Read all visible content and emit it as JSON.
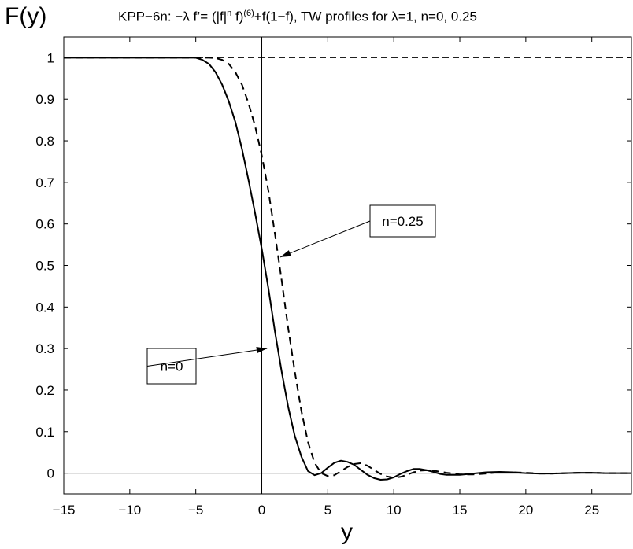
{
  "chart_data": {
    "type": "line",
    "title_parts": {
      "prefix": "KPP−6n: −λ f’= (|f|",
      "sup_n": "n",
      "mid": " f)",
      "sup_6": "(6)",
      "suffix": "+f(1−f), TW profiles for λ=1, n=0, 0.25"
    },
    "ylabel": "F(y)",
    "xlabel": "y",
    "xlim": [
      -15,
      28
    ],
    "ylim": [
      -0.05,
      1.05
    ],
    "xticks": [
      -15,
      -10,
      -5,
      0,
      5,
      10,
      15,
      20,
      25
    ],
    "xtick_labels": [
      "−15",
      "−10",
      "−5",
      "0",
      "5",
      "10",
      "15",
      "20",
      "25"
    ],
    "yticks": [
      0,
      0.1,
      0.2,
      0.3,
      0.4,
      0.5,
      0.6,
      0.7,
      0.8,
      0.9,
      1
    ],
    "ytick_labels": [
      "0",
      "0.1",
      "0.2",
      "0.3",
      "0.4",
      "0.5",
      "0.6",
      "0.7",
      "0.8",
      "0.9",
      "1"
    ],
    "grid": false,
    "reference_lines": [
      {
        "axis": "y",
        "value": 1,
        "style": "dashed"
      },
      {
        "axis": "y",
        "value": 0,
        "style": "solid"
      },
      {
        "axis": "x",
        "value": 0,
        "style": "solid"
      }
    ],
    "series": [
      {
        "name": "n=0",
        "style": "solid",
        "color": "#000000",
        "x": [
          -15,
          -10,
          -6,
          -5,
          -4.5,
          -4,
          -3.5,
          -3,
          -2.5,
          -2,
          -1.5,
          -1,
          -0.5,
          0,
          0.5,
          1,
          1.5,
          2,
          2.5,
          3,
          3.5,
          4,
          4.5,
          5,
          5.5,
          6,
          6.5,
          7,
          7.5,
          8,
          8.5,
          9,
          9.5,
          10,
          10.5,
          11,
          11.5,
          12,
          12.5,
          13,
          13.5,
          14,
          15,
          16,
          17,
          18,
          19,
          20,
          21,
          22,
          23,
          24,
          25,
          26,
          27,
          28
        ],
        "y": [
          1,
          1,
          1,
          1,
          0.995,
          0.985,
          0.965,
          0.935,
          0.895,
          0.845,
          0.78,
          0.705,
          0.625,
          0.54,
          0.445,
          0.34,
          0.245,
          0.16,
          0.09,
          0.04,
          0.005,
          -0.005,
          0.0,
          0.013,
          0.025,
          0.03,
          0.027,
          0.02,
          0.008,
          -0.004,
          -0.012,
          -0.016,
          -0.015,
          -0.01,
          -0.002,
          0.005,
          0.01,
          0.01,
          0.007,
          0.003,
          -0.002,
          -0.004,
          -0.004,
          -0.001,
          0.002,
          0.003,
          0.002,
          0.0,
          -0.001,
          -0.001,
          0.0,
          0.001,
          0.001,
          0.0,
          0.0,
          0.0
        ]
      },
      {
        "name": "n=0.25",
        "style": "dashed",
        "color": "#000000",
        "x": [
          -15,
          -10,
          -6,
          -5,
          -4,
          -3.5,
          -3,
          -2.5,
          -2,
          -1.5,
          -1,
          -0.5,
          0,
          0.5,
          1,
          1.5,
          2,
          2.5,
          3,
          3.5,
          4,
          4.5,
          5,
          5.5,
          6,
          6.5,
          7,
          7.5,
          8,
          8.5,
          9,
          9.5,
          10,
          10.5,
          11,
          11.5,
          12,
          12.5,
          13,
          14,
          15,
          16,
          17,
          18,
          19,
          20,
          21,
          22,
          23,
          24,
          25,
          26,
          27,
          28
        ],
        "y": [
          1,
          1,
          1,
          1,
          1,
          0.999,
          0.995,
          0.985,
          0.965,
          0.935,
          0.89,
          0.835,
          0.765,
          0.68,
          0.575,
          0.465,
          0.35,
          0.245,
          0.15,
          0.075,
          0.025,
          0.0,
          -0.007,
          -0.005,
          0.005,
          0.015,
          0.022,
          0.024,
          0.018,
          0.008,
          -0.002,
          -0.008,
          -0.011,
          -0.009,
          -0.004,
          0.002,
          0.006,
          0.007,
          0.006,
          0.001,
          -0.003,
          -0.003,
          -0.001,
          0.002,
          0.002,
          0.001,
          -0.001,
          -0.001,
          0.0,
          0.001,
          0.001,
          0.0,
          0.0,
          0.0
        ]
      }
    ],
    "annotations": [
      {
        "text": "n=0.25",
        "arrow_to": {
          "x": 1.4,
          "y": 0.52
        }
      },
      {
        "text": "n=0",
        "arrow_to": {
          "x": 0.4,
          "y": 0.3
        }
      }
    ]
  }
}
